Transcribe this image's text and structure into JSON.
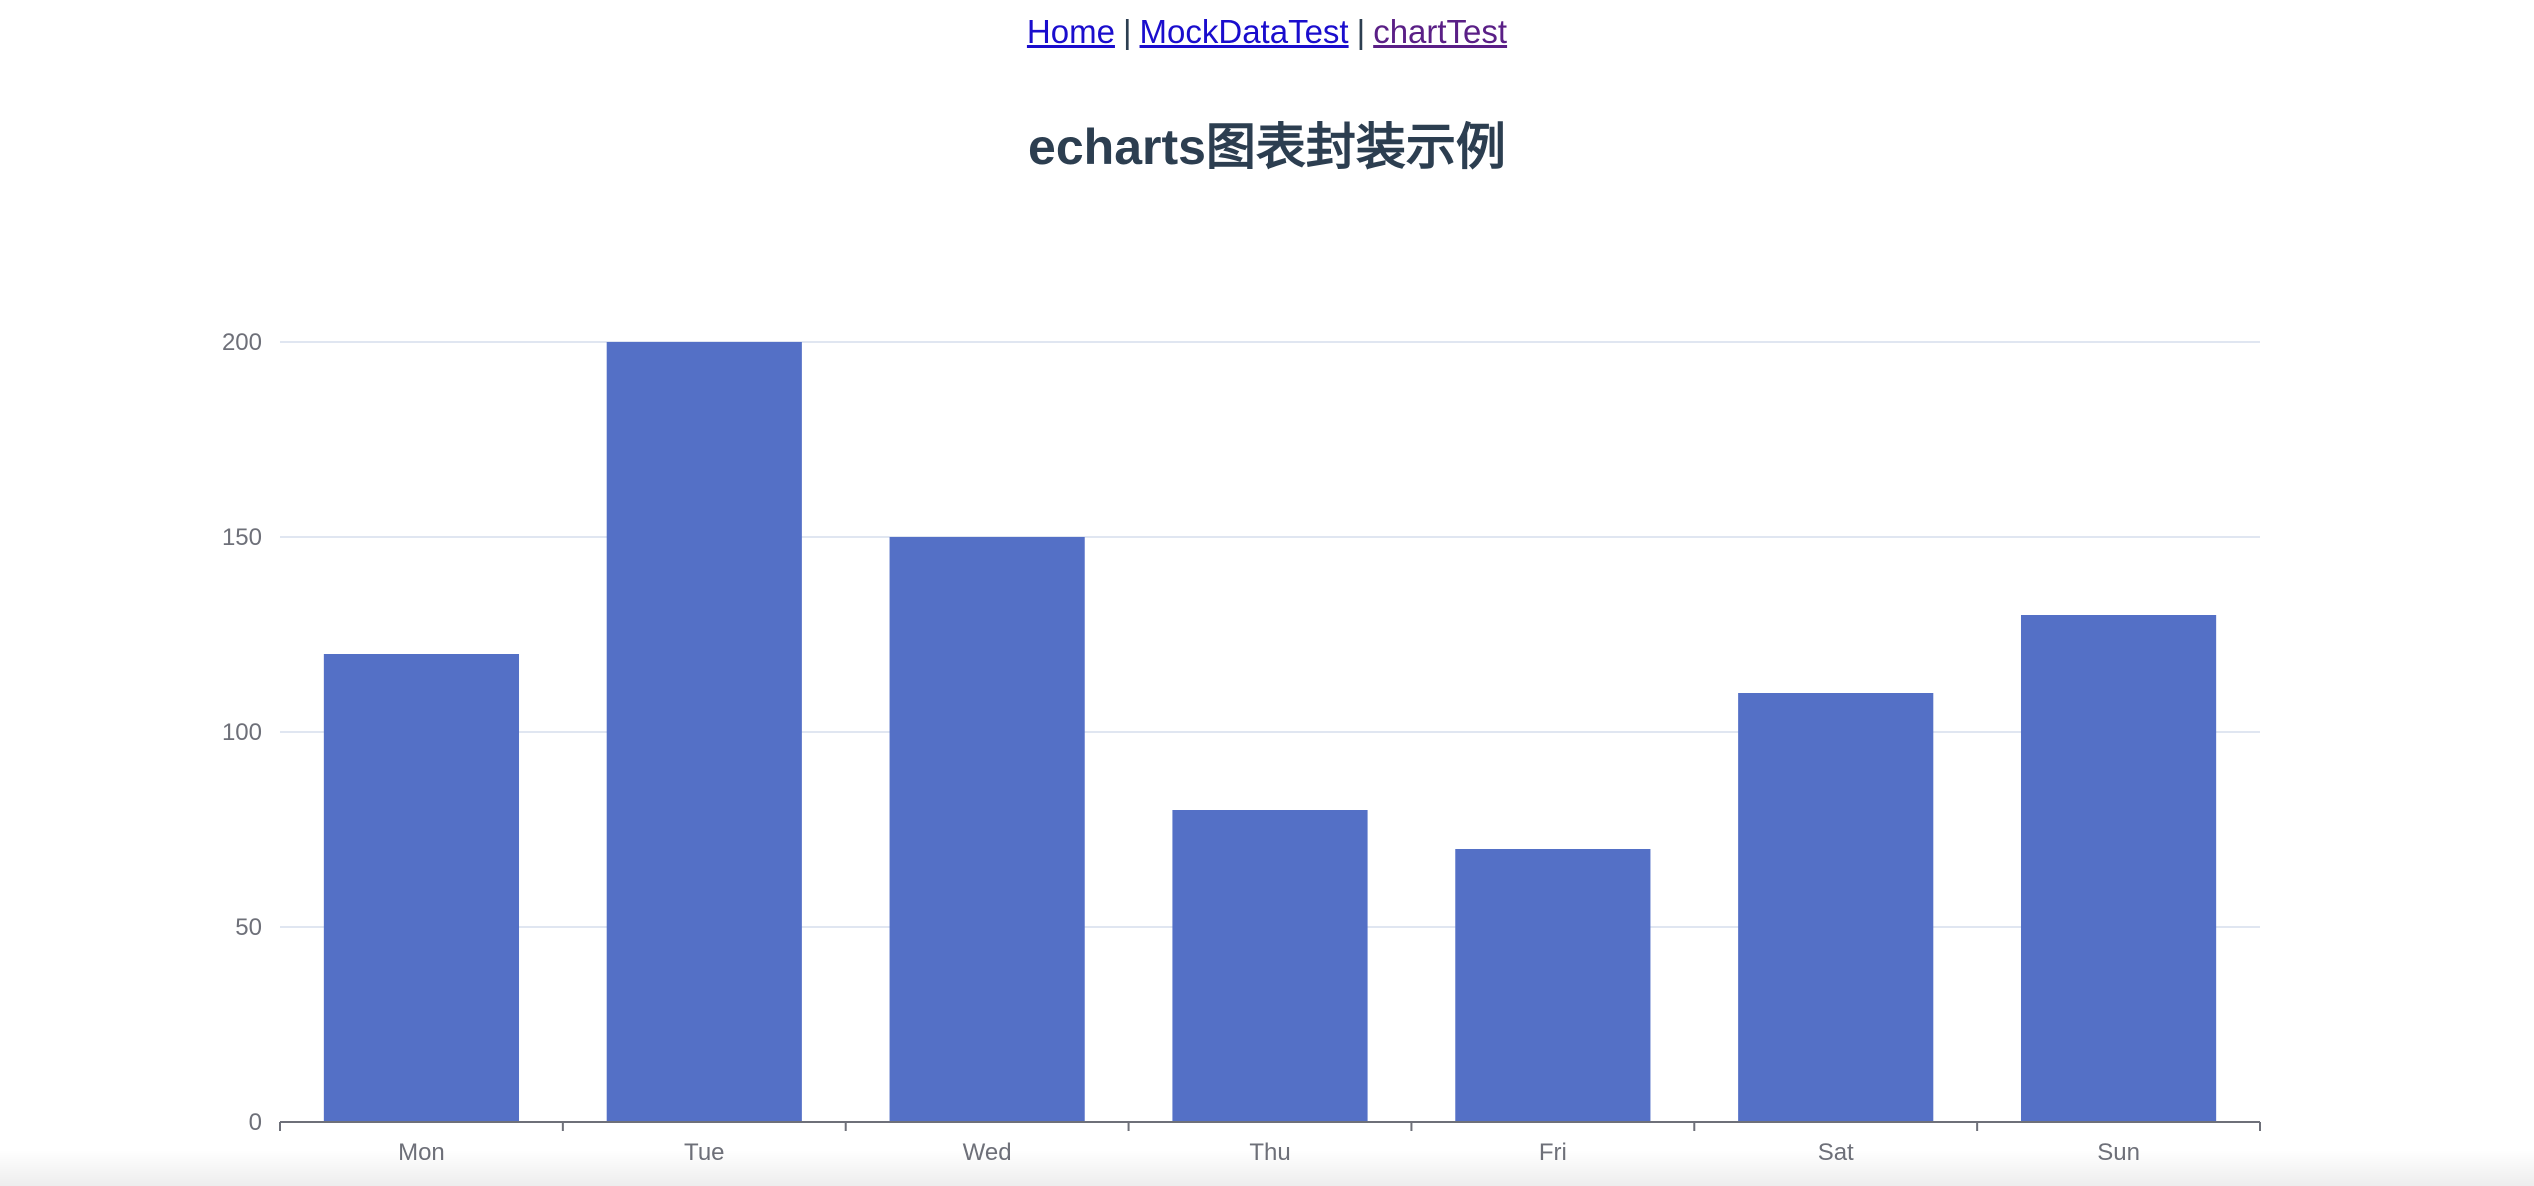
{
  "nav": {
    "links": [
      {
        "label": "Home"
      },
      {
        "label": "MockDataTest"
      },
      {
        "label": "chartTest"
      }
    ],
    "separator": "|"
  },
  "page": {
    "title": "echarts图表封装示例"
  },
  "colors": {
    "bar": "#5470c6",
    "axis_text": "#6e7079",
    "grid_line": "#e0e6f1",
    "axis_line": "#6e7079"
  },
  "chart_data": {
    "type": "bar",
    "categories": [
      "Mon",
      "Tue",
      "Wed",
      "Thu",
      "Fri",
      "Sat",
      "Sun"
    ],
    "values": [
      120,
      200,
      150,
      80,
      70,
      110,
      130
    ],
    "ylim": [
      0,
      200
    ],
    "yticks": [
      0,
      50,
      100,
      150,
      200
    ],
    "title": "",
    "xlabel": "",
    "ylabel": "",
    "grid": true
  }
}
